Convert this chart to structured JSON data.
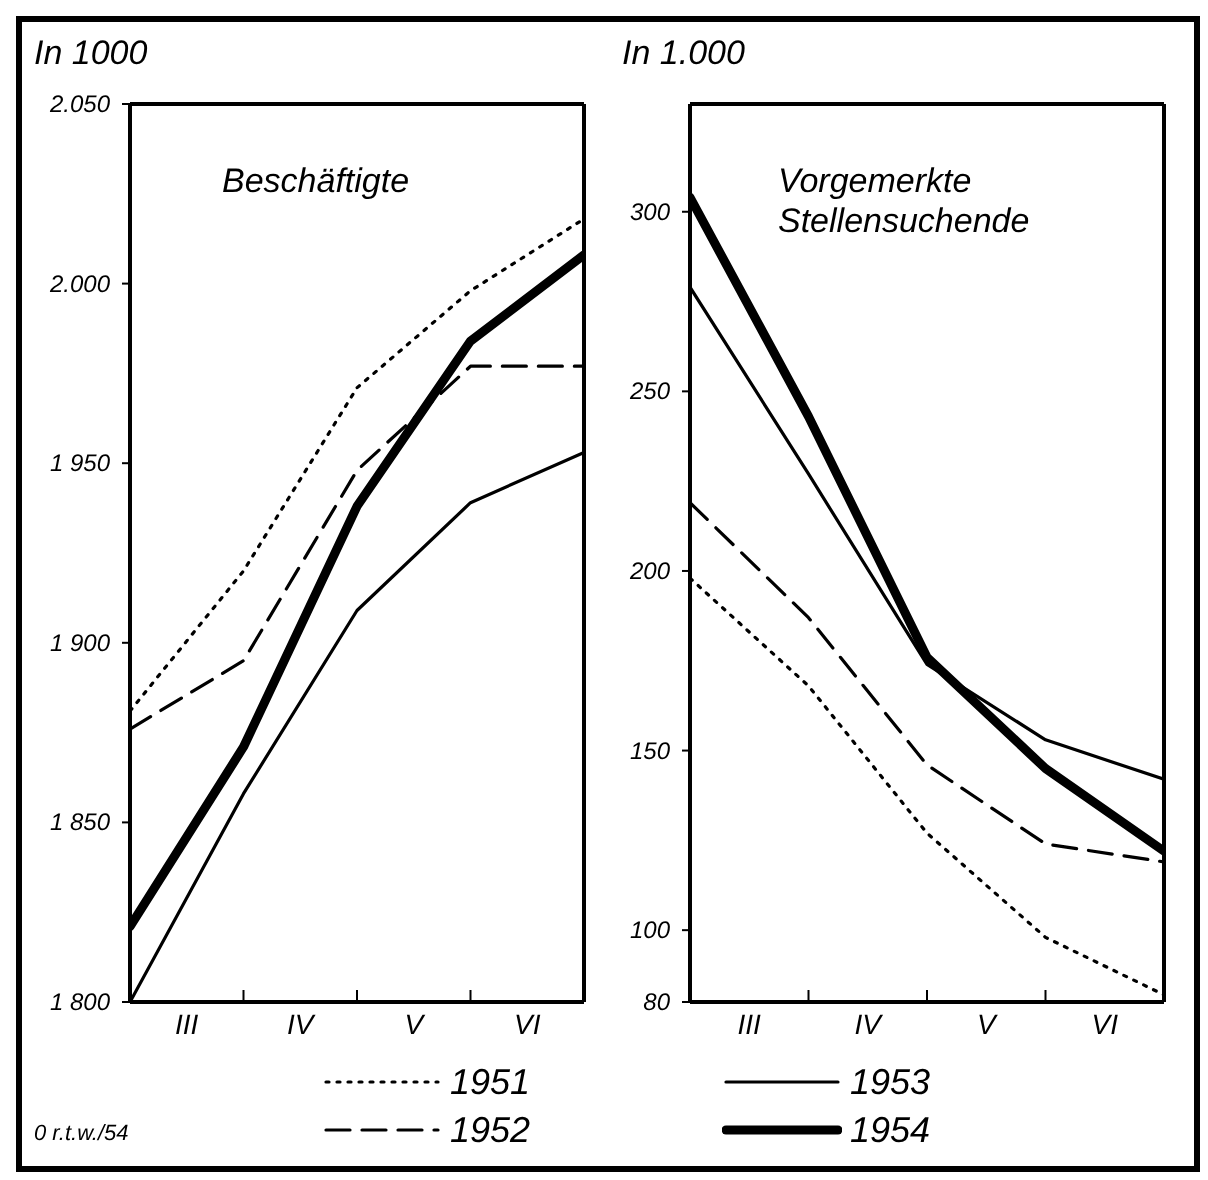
{
  "chart_data": [
    {
      "type": "line",
      "title": "Beschäftigte",
      "ylabel": "In 1000",
      "categories": [
        null,
        "III",
        null,
        "IV",
        null,
        "V",
        null,
        "VI",
        null
      ],
      "ylim": [
        1800,
        2050
      ],
      "yticks": [
        {
          "value": 1800,
          "label": "1 800"
        },
        {
          "value": 1850,
          "label": "1 850"
        },
        {
          "value": 1900,
          "label": "1 900"
        },
        {
          "value": 1950,
          "label": "1 950"
        },
        {
          "value": 2000,
          "label": "2.000"
        },
        {
          "value": 2050,
          "label": "2.050"
        }
      ],
      "grid": false,
      "legend": "bottom",
      "marker": "none",
      "annotations": [
        "0 r.t.w./54"
      ],
      "series": [
        {
          "name": "1951",
          "color": "#000000",
          "line_style": "dotted",
          "values": [
            1881,
            null,
            1920,
            null,
            1971,
            null,
            1998,
            null,
            2018
          ]
        },
        {
          "name": "1952",
          "color": "#000000",
          "line_style": "dashed",
          "values": [
            1876,
            null,
            1895,
            null,
            1948,
            null,
            1977,
            null,
            1977
          ]
        },
        {
          "name": "1953",
          "color": "#000000",
          "line_style": "solid",
          "values": [
            1800,
            null,
            1858,
            null,
            1909,
            null,
            1939,
            null,
            1953
          ]
        },
        {
          "name": "1954",
          "color": "#000000",
          "line_style": "solid",
          "values": [
            1821,
            null,
            1871,
            null,
            1938,
            null,
            1984,
            null,
            2008
          ]
        }
      ]
    },
    {
      "type": "line",
      "title": "Vorgemerkte Stellensuchende",
      "ylabel": "In 1.000",
      "categories": [
        null,
        "III",
        null,
        "IV",
        null,
        "V",
        null,
        "VI",
        null
      ],
      "ylim": [
        80,
        330
      ],
      "yticks": [
        80,
        100,
        150,
        200,
        250,
        300
      ],
      "grid": false,
      "marker": "none",
      "series": [
        {
          "color": "#000000",
          "line_style": "dotted",
          "values": [
            198,
            null,
            168,
            null,
            127,
            null,
            98,
            null,
            82
          ]
        },
        {
          "color": "#000000",
          "line_style": "dashed",
          "values": [
            219,
            null,
            187,
            null,
            146,
            null,
            124,
            null,
            119
          ]
        },
        {
          "color": "#000000",
          "line_style": "solid",
          "values": [
            279,
            null,
            227,
            null,
            174,
            null,
            153,
            null,
            142
          ]
        },
        {
          "color": "#000000",
          "line_style": "solid",
          "values": [
            304,
            null,
            243,
            null,
            176,
            null,
            145,
            null,
            122
          ]
        }
      ]
    }
  ]
}
